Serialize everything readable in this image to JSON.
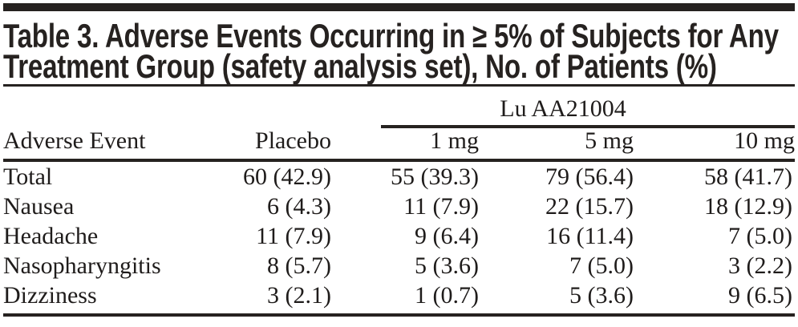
{
  "page": {
    "background": "#ffffff",
    "ink": "#262220"
  },
  "title": {
    "line1": "Table 3. Adverse Events Occurring in ≥ 5% of Subjects for Any",
    "line2": "Treatment Group (safety analysis set), No. of Patients (%)"
  },
  "table": {
    "group_header": "Lu AA21004",
    "columns": [
      "Adverse Event",
      "Placebo",
      "1 mg",
      "5 mg",
      "10 mg"
    ],
    "rows": [
      {
        "label": "Total",
        "values": [
          "60 (42.9)",
          "55 (39.3)",
          "79 (56.4)",
          "58 (41.7)"
        ]
      },
      {
        "label": "Nausea",
        "values": [
          "6 (4.3)",
          "11 (7.9)",
          "22 (15.7)",
          "18 (12.9)"
        ]
      },
      {
        "label": "Headache",
        "values": [
          "11 (7.9)",
          "9 (6.4)",
          "16 (11.4)",
          "7 (5.0)"
        ]
      },
      {
        "label": "Nasopharyngitis",
        "values": [
          "8 (5.7)",
          "5 (3.6)",
          "7 (5.0)",
          "3 (2.2)"
        ]
      },
      {
        "label": "Dizziness",
        "values": [
          "3 (2.1)",
          "1 (0.7)",
          "5 (3.6)",
          "9 (6.5)"
        ]
      }
    ]
  }
}
